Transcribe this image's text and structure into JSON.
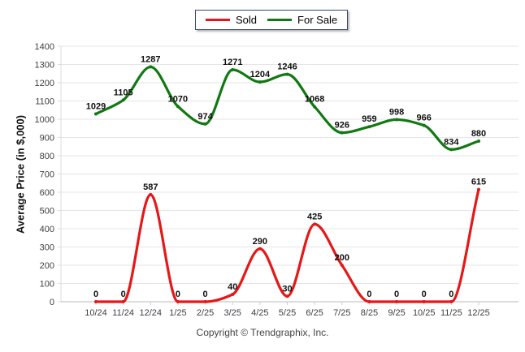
{
  "chart_data": {
    "type": "line",
    "title": "",
    "categories": [
      "10/24",
      "11/24",
      "12/24",
      "1/25",
      "2/25",
      "3/25",
      "4/25",
      "5/25",
      "6/25",
      "7/25",
      "8/25",
      "9/25",
      "10/25",
      "11/25",
      "12/25"
    ],
    "series": [
      {
        "name": "Sold",
        "color": "#e61717",
        "values": [
          0,
          0,
          587,
          0,
          0,
          40,
          290,
          30,
          425,
          200,
          0,
          0,
          0,
          0,
          615
        ]
      },
      {
        "name": "For Sale",
        "color": "#127812",
        "values": [
          1029,
          1105,
          1287,
          1070,
          974,
          1271,
          1204,
          1246,
          1068,
          926,
          959,
          998,
          966,
          834,
          880
        ]
      }
    ],
    "xlabel": "",
    "ylabel": "Average Price (in $,000)",
    "ylim": [
      0,
      1400
    ],
    "ytick_step": 100,
    "grid": "horizontal",
    "legend_position": "top-center",
    "curve": "smooth-monotone",
    "data_labels": true
  },
  "footer": {
    "copyright": "Copyright © Trendgraphix, Inc."
  }
}
